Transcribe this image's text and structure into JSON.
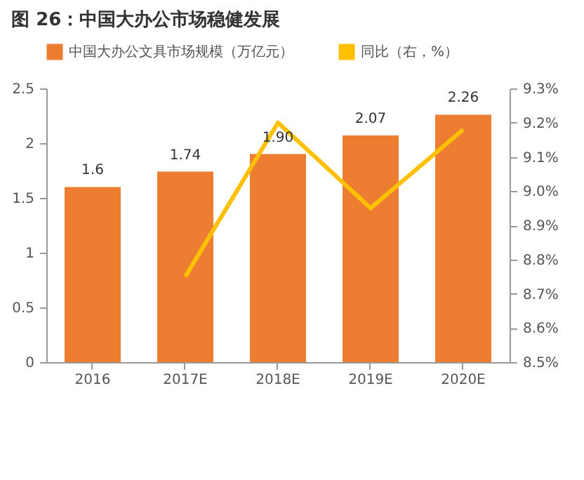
{
  "chart_data": {
    "type": "bar",
    "title": "图 26：中国大办公市场稳健发展",
    "categories": [
      "2016",
      "2017E",
      "2018E",
      "2019E",
      "2020E"
    ],
    "series": [
      {
        "name": "中国大办公文具市场规模（万亿元）",
        "color": "#ed7d31",
        "values": [
          1.6,
          1.74,
          1.9,
          2.07,
          2.26
        ],
        "value_labels": [
          "1.6",
          "1.74",
          "1.90",
          "2.07",
          "2.26"
        ]
      },
      {
        "name": "同比（右，%）",
        "type": "line",
        "axis": "y2",
        "color": "#ffc000",
        "values": [
          null,
          8.75,
          9.2,
          8.95,
          9.18
        ]
      }
    ],
    "ylim": [
      0,
      2.5
    ],
    "yticks": [
      0,
      0.5,
      1,
      1.5,
      2,
      2.5
    ],
    "y2lim": [
      8.5,
      9.3
    ],
    "y2ticks": [
      {
        "value": 8.5,
        "label": "8.5%"
      },
      {
        "value": 8.6,
        "label": "8.6%"
      },
      {
        "value": 8.7,
        "label": "8.7%"
      },
      {
        "value": 8.8,
        "label": "8.8%"
      },
      {
        "value": 8.9,
        "label": "8.9%"
      },
      {
        "value": 9.0,
        "label": "9.0%"
      },
      {
        "value": 9.1,
        "label": "9.1%"
      },
      {
        "value": 9.2,
        "label": "9.2%"
      },
      {
        "value": 9.3,
        "label": "9.3%"
      }
    ],
    "grid": false,
    "legend": "top",
    "line_style": "solid",
    "marker": "none"
  }
}
